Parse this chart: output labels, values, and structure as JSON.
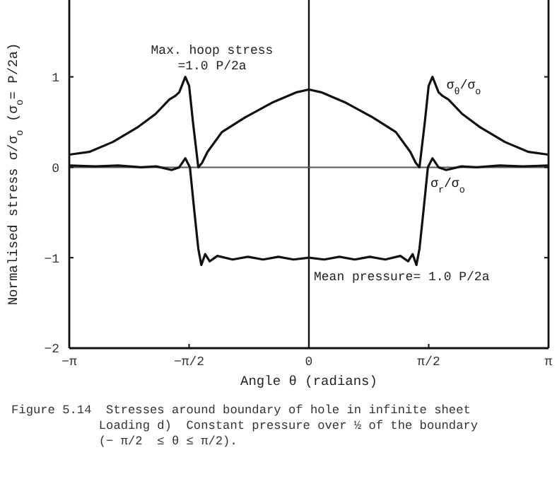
{
  "chart_data": {
    "type": "line",
    "xlabel": "Angle  θ  (radians)",
    "ylabel": "Normalised  stress   σ/σ$_{o}$   (σ$_{o}$= P/2a)",
    "xlim": [
      -3.1416,
      3.1416
    ],
    "ylim": [
      -2,
      1.85
    ],
    "xticks": [
      {
        "value": -3.1416,
        "label": "−π"
      },
      {
        "value": -1.5708,
        "label": "−π/2"
      },
      {
        "value": 0,
        "label": "0"
      },
      {
        "value": 1.5708,
        "label": "π/2"
      },
      {
        "value": 3.1416,
        "label": "π"
      }
    ],
    "yticks": [
      -2,
      -1,
      0,
      1
    ],
    "grid": false,
    "marker": "none",
    "line_style": "solid",
    "ref_lines": [
      {
        "axis": "x",
        "value": 0,
        "color": "#111111"
      },
      {
        "axis": "y",
        "value": 0,
        "color": "#555555"
      }
    ],
    "series": [
      {
        "name": "σ$_{θ}$/σ$_{o}$",
        "color": "#111111",
        "x": [
          -3.14,
          -2.88,
          -2.57,
          -2.25,
          -2.01,
          -1.83,
          -1.75,
          -1.7,
          -1.62,
          -1.57,
          -1.52,
          -1.45,
          -1.4,
          -1.33,
          -1.14,
          -0.84,
          -0.47,
          -0.16,
          0,
          0.16,
          0.47,
          0.84,
          1.14,
          1.33,
          1.4,
          1.45,
          1.52,
          1.57,
          1.62,
          1.7,
          1.75,
          1.83,
          2.01,
          2.25,
          2.57,
          2.88,
          3.14
        ],
        "values": [
          0.14,
          0.17,
          0.28,
          0.44,
          0.59,
          0.75,
          0.79,
          0.83,
          1.0,
          0.9,
          0.5,
          0.0,
          0.05,
          0.17,
          0.39,
          0.55,
          0.72,
          0.83,
          0.86,
          0.83,
          0.72,
          0.55,
          0.39,
          0.17,
          0.05,
          0.0,
          0.5,
          0.9,
          1.0,
          0.83,
          0.79,
          0.75,
          0.59,
          0.44,
          0.28,
          0.17,
          0.14
        ]
      },
      {
        "name": "σ$_{r}$/σ$_{o}$",
        "color": "#111111",
        "x": [
          -3.14,
          -2.8,
          -2.5,
          -2.2,
          -2.0,
          -1.8,
          -1.7,
          -1.62,
          -1.56,
          -1.5,
          -1.45,
          -1.41,
          -1.36,
          -1.3,
          -1.2,
          -1.0,
          -0.8,
          -0.6,
          -0.4,
          -0.2,
          0,
          0.2,
          0.4,
          0.6,
          0.8,
          1.0,
          1.2,
          1.3,
          1.36,
          1.41,
          1.45,
          1.5,
          1.56,
          1.62,
          1.7,
          1.8,
          2.0,
          2.2,
          2.5,
          2.8,
          3.14
        ],
        "values": [
          0.02,
          0.01,
          0.02,
          0.0,
          0.01,
          -0.03,
          0.0,
          0.1,
          0.0,
          -0.5,
          -0.9,
          -1.08,
          -0.96,
          -1.04,
          -0.98,
          -1.02,
          -0.99,
          -1.02,
          -0.99,
          -1.02,
          -1.0,
          -1.02,
          -0.99,
          -1.02,
          -0.99,
          -1.02,
          -0.98,
          -1.04,
          -0.96,
          -1.08,
          -0.9,
          -0.5,
          0.0,
          0.1,
          0.0,
          -0.03,
          0.01,
          0.0,
          0.02,
          0.01,
          0.02
        ]
      }
    ],
    "annotations": [
      "Max. hoop stress\n=1.0 P/2a",
      "Mean pressure= 1.0 P/2a",
      "Figure 5.14  Stresses around boundary of hole in infinite sheet\n            Loading d)  Constant pressure over ½ of the boundary\n            (− π/2  ≤ θ ≤ π/2)."
    ]
  }
}
